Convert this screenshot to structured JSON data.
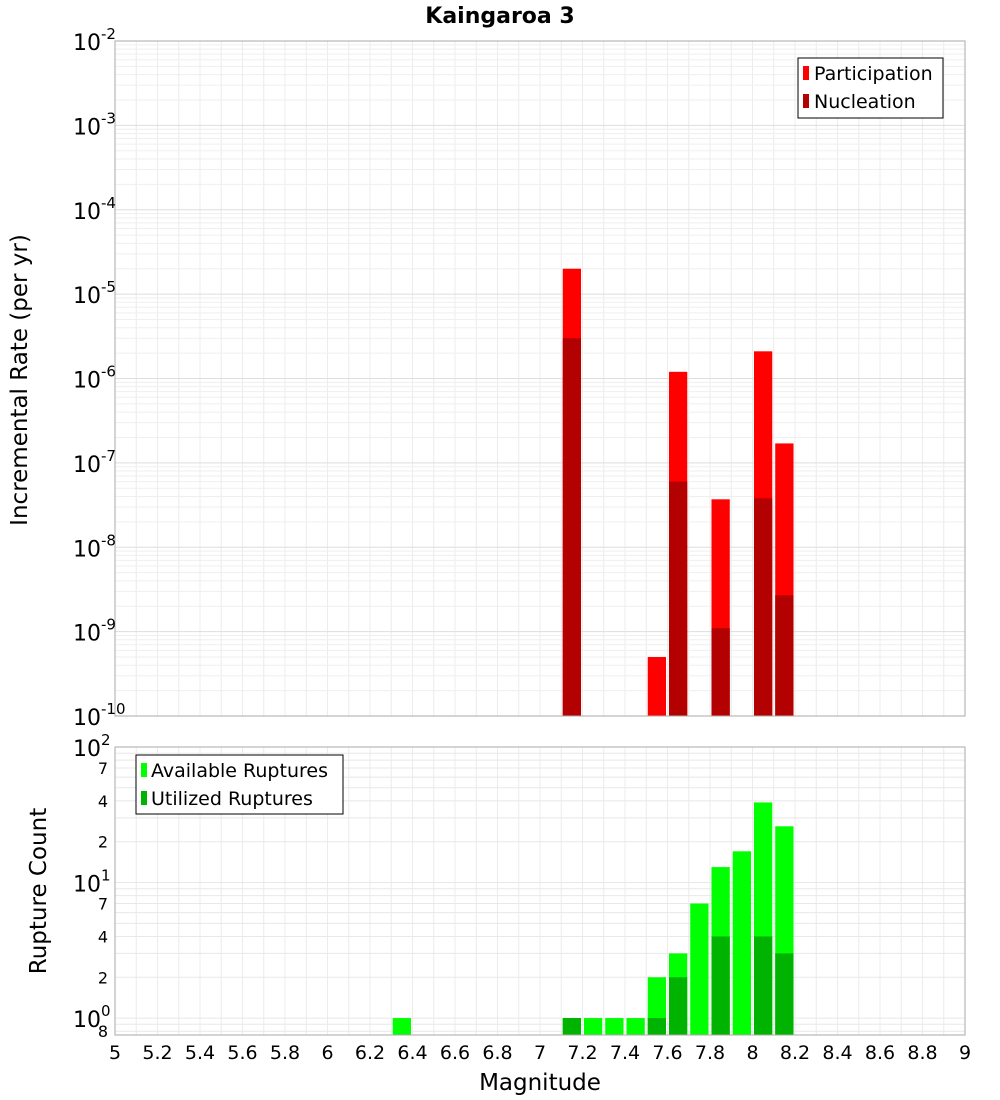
{
  "title": "Kaingaroa 3",
  "chart_data": [
    {
      "type": "bar",
      "ylabel": "Incremental Rate (per yr)",
      "yscale": "log",
      "ylim": [
        1e-10,
        0.01
      ],
      "y_tick_labels": [
        {
          "base": "10",
          "exp": "-2",
          "value": 0.01
        },
        {
          "base": "10",
          "exp": "-3",
          "value": 0.001
        },
        {
          "base": "10",
          "exp": "-4",
          "value": 0.0001
        },
        {
          "base": "10",
          "exp": "-5",
          "value": 1e-05
        },
        {
          "base": "10",
          "exp": "-6",
          "value": 1e-06
        },
        {
          "base": "10",
          "exp": "-7",
          "value": 1e-07
        },
        {
          "base": "10",
          "exp": "-8",
          "value": 1e-08
        },
        {
          "base": "10",
          "exp": "-9",
          "value": 1e-09
        },
        {
          "base": "10",
          "exp": "-10",
          "value": 1e-10
        }
      ],
      "legend_position": "top-right",
      "series": [
        {
          "name": "Participation",
          "color": "#ff0000",
          "x": [
            7.15,
            7.55,
            7.65,
            7.85,
            8.05,
            8.15
          ],
          "values": [
            2e-05,
            5e-10,
            1.2e-06,
            3.7e-08,
            2.1e-06,
            1.7e-07
          ]
        },
        {
          "name": "Nucleation",
          "color": "#b30000",
          "x": [
            7.15,
            7.65,
            7.85,
            8.05,
            8.15
          ],
          "values": [
            3e-06,
            6e-08,
            1.1e-09,
            3.8e-08,
            2.7e-09
          ]
        }
      ]
    },
    {
      "type": "bar",
      "xlabel": "Magnitude",
      "ylabel": "Rupture Count",
      "yscale": "log",
      "xlim": [
        5,
        9
      ],
      "x_tick_labels": [
        "5",
        "5.2",
        "5.4",
        "5.6",
        "5.8",
        "6",
        "6.2",
        "6.4",
        "6.6",
        "6.8",
        "7",
        "7.2",
        "7.4",
        "7.6",
        "7.8",
        "8",
        "8.2",
        "8.4",
        "8.6",
        "8.8",
        "9"
      ],
      "y_tick_labels": [
        {
          "base": "10",
          "exp": "2",
          "value": 100
        },
        {
          "label": "7",
          "value": 70
        },
        {
          "label": "4",
          "value": 40
        },
        {
          "label": "2",
          "value": 20
        },
        {
          "base": "10",
          "exp": "1",
          "value": 10
        },
        {
          "label": "7",
          "value": 7
        },
        {
          "label": "4",
          "value": 4
        },
        {
          "label": "2",
          "value": 2
        },
        {
          "base": "10",
          "exp": "0",
          "value": 1
        },
        {
          "label": "8",
          "value": 0.8
        }
      ],
      "legend_position": "top-left",
      "series": [
        {
          "name": "Available Ruptures",
          "color": "#00ff00",
          "x": [
            6.35,
            7.15,
            7.25,
            7.35,
            7.45,
            7.55,
            7.65,
            7.75,
            7.85,
            7.95,
            8.05,
            8.15
          ],
          "values": [
            1,
            1,
            1,
            1,
            1,
            2,
            3,
            7,
            13,
            17,
            39,
            26
          ]
        },
        {
          "name": "Utilized Ruptures",
          "color": "#00b300",
          "x": [
            7.15,
            7.55,
            7.65,
            7.85,
            8.05,
            8.15
          ],
          "values": [
            1,
            1,
            2,
            4,
            4,
            3
          ]
        }
      ]
    }
  ]
}
